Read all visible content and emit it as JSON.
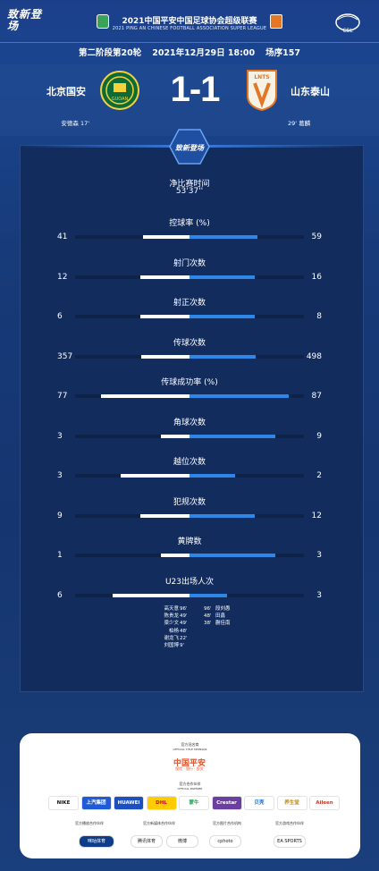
{
  "header": {
    "brand_logo": "致新登场",
    "competition_title": "2021中国平安中国足球协会超级联赛",
    "competition_subtitle": "2021 PING AN CHINESE FOOTBALL ASSOCIATION SUPER LEAGUE",
    "league_logo_text": "CSL"
  },
  "match_info": {
    "round": "第二阶段第20轮",
    "datetime": "2021年12月29日 18:00",
    "match_no": "场序157"
  },
  "home": {
    "name": "北京国安",
    "crest_text": "GUOAN",
    "scorer": "安德森 17'"
  },
  "away": {
    "name": "山东泰山",
    "crest_text": "LNTS",
    "scorer": "29' 葛麟"
  },
  "score": "1-1",
  "hex_badge": "致新登场",
  "net_time": {
    "label": "净比赛时间",
    "value": "53'37''"
  },
  "stats": [
    {
      "label": "控球率 (%)",
      "home": "41",
      "away": "59",
      "home_frac": 0.41,
      "away_frac": 0.59
    },
    {
      "label": "射门次数",
      "home": "12",
      "away": "16",
      "home_frac": 0.43,
      "away_frac": 0.57
    },
    {
      "label": "射正次数",
      "home": "6",
      "away": "8",
      "home_frac": 0.43,
      "away_frac": 0.57
    },
    {
      "label": "传球次数",
      "home": "357",
      "away": "498",
      "home_frac": 0.42,
      "away_frac": 0.58
    },
    {
      "label": "传球成功率 (%)",
      "home": "77",
      "away": "87",
      "home_frac": 0.77,
      "away_frac": 0.87
    },
    {
      "label": "角球次数",
      "home": "3",
      "away": "9",
      "home_frac": 0.25,
      "away_frac": 0.75
    },
    {
      "label": "越位次数",
      "home": "3",
      "away": "2",
      "home_frac": 0.6,
      "away_frac": 0.4
    },
    {
      "label": "犯规次数",
      "home": "9",
      "away": "12",
      "home_frac": 0.43,
      "away_frac": 0.57
    },
    {
      "label": "黄牌数",
      "home": "1",
      "away": "3",
      "home_frac": 0.25,
      "away_frac": 0.75
    },
    {
      "label": "U23出场人次",
      "home": "6",
      "away": "3",
      "home_frac": 0.67,
      "away_frac": 0.33
    }
  ],
  "u23_home": [
    {
      "name": "高天意",
      "min": "96'"
    },
    {
      "name": "陈贵龙",
      "min": "49'"
    },
    {
      "name": "梁少文",
      "min": "49'"
    },
    {
      "name": "柏杨",
      "min": "48'"
    },
    {
      "name": "谢龙飞",
      "min": "22'"
    },
    {
      "name": "刘国博",
      "min": "9'"
    }
  ],
  "u23_away": [
    {
      "name": "段刘愚",
      "min": "96'"
    },
    {
      "name": "田鑫",
      "min": "48'"
    },
    {
      "name": "蒯佳南",
      "min": "38'"
    }
  ],
  "colors": {
    "home_bar": "#ffffff",
    "away_bar": "#2e86e6",
    "background": "#173a78"
  },
  "sponsors": {
    "title_sponsor_label": "官方冠名商",
    "title_sponsor_label_en": "OFFICIAL TITLE SPONSOR",
    "title_sponsor": "中国平安",
    "title_sponsor_sub": "保险 · 银行 · 投资",
    "partner_label": "官方合作伙伴",
    "partner_label_en": "OFFICIAL PARTNER",
    "partners": [
      "NIKE",
      "上汽集团",
      "HUAWEI",
      "DHL",
      "蒙牛",
      "Crestar",
      "贝壳",
      "养生堂",
      "Aileen"
    ],
    "cat1": "官方播放合作伙伴",
    "cat2": "官方新媒体合作伙伴",
    "cat3": "官方图片合作机构",
    "cat4": "官方游戏合作伙伴",
    "partners2": [
      "咪咕体育",
      "腾讯体育",
      "微博",
      "cphoto",
      "EA SPORTS"
    ]
  }
}
